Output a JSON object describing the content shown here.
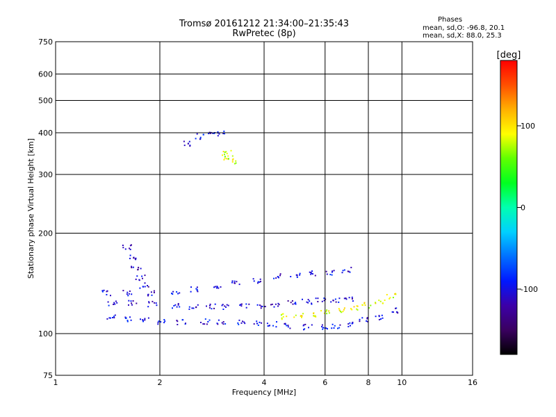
{
  "title": {
    "line1": "Tromsø 20161212 21:34:00–21:35:43",
    "line2": "RwPretec (8p)"
  },
  "phases_box": {
    "heading": "Phases",
    "line_o": "mean, sd,O: -96.8, 20.1",
    "line_x": "mean, sd,X:  88.0, 25.3"
  },
  "chart_data": {
    "type": "scatter",
    "xlabel": "Frequency [MHz]",
    "ylabel": "Stationary phase Virtual Height [km]",
    "xscale": "log",
    "yscale": "log",
    "xlim": [
      1,
      16
    ],
    "ylim": [
      75,
      750
    ],
    "xticks": [
      {
        "v": 1,
        "label": "1"
      },
      {
        "v": 2,
        "label": "2"
      },
      {
        "v": 4,
        "label": "4"
      },
      {
        "v": 6,
        "label": "6"
      },
      {
        "v": 8,
        "label": "8"
      },
      {
        "v": 10,
        "label": "10"
      },
      {
        "v": 16,
        "label": "16"
      }
    ],
    "yticks": [
      {
        "v": 75,
        "label": "75"
      },
      {
        "v": 100,
        "label": "100"
      },
      {
        "v": 200,
        "label": "200"
      },
      {
        "v": 300,
        "label": "300"
      },
      {
        "v": 400,
        "label": "400"
      },
      {
        "v": 500,
        "label": "500"
      },
      {
        "v": 600,
        "label": "600"
      },
      {
        "v": 750,
        "label": "750"
      }
    ],
    "grid": true,
    "colorbar": {
      "label": "[deg]",
      "range": [
        -180,
        180
      ],
      "ticks": [
        {
          "v": 100,
          "label": "100"
        },
        {
          "v": 0,
          "label": "0"
        },
        {
          "v": -100,
          "label": "-100"
        }
      ],
      "colors": [
        "#000000",
        "#3a0060",
        "#3c00a8",
        "#0018ff",
        "#0070ff",
        "#00d0ff",
        "#00ffb0",
        "#00ff20",
        "#60ff00",
        "#ffff00",
        "#ffb000",
        "#ff5000",
        "#ff0000"
      ]
    },
    "series": [
      {
        "x": [
          1.45,
          1.6,
          1.8,
          2.0,
          2.3,
          2.7,
          3.0,
          3.4,
          3.8,
          4.2,
          4.7,
          5.3,
          5.9,
          6.4,
          7.0,
          7.7,
          8.5,
          9.4
        ],
        "y": [
          113,
          111,
          110,
          109,
          109,
          109,
          109,
          109,
          108,
          107,
          106,
          105,
          105,
          106,
          107,
          110,
          112,
          118
        ],
        "phase": -100
      },
      {
        "x": [
          1.4,
          1.6,
          1.9,
          2.2,
          2.5,
          2.9,
          3.3,
          3.8,
          4.3,
          4.9,
          5.5,
          6.2,
          6.9
        ],
        "y": [
          133,
          133,
          133,
          134,
          136,
          139,
          142,
          145,
          149,
          151,
          152,
          153,
          156
        ],
        "phase": -100
      },
      {
        "x": [
          1.45,
          1.65,
          1.9,
          2.2,
          2.5,
          2.8,
          3.1,
          3.5,
          3.9,
          4.3,
          4.8,
          5.3,
          5.8,
          6.4,
          7.0
        ],
        "y": [
          124,
          124,
          123,
          122,
          121,
          121,
          121,
          121,
          122,
          123,
          124,
          125,
          126,
          127,
          127
        ],
        "phase": -105
      },
      {
        "x": [
          1.6,
          1.65,
          1.7,
          1.75,
          1.8
        ],
        "y": [
          182,
          170,
          158,
          148,
          140
        ],
        "phase": -110
      },
      {
        "x": [
          2.4,
          2.6,
          2.8,
          3.0
        ],
        "y": [
          372,
          392,
          400,
          400
        ],
        "phase": -100
      },
      {
        "x": [
          4.5,
          5.0,
          5.5,
          6.0,
          6.6,
          7.2,
          7.9,
          8.6,
          9.3
        ],
        "y": [
          113,
          114,
          115,
          116,
          118,
          120,
          122,
          125,
          130
        ],
        "phase": 90
      },
      {
        "x": [
          3.1,
          3.15,
          3.2
        ],
        "y": [
          350,
          340,
          330
        ],
        "phase": 80
      }
    ]
  }
}
